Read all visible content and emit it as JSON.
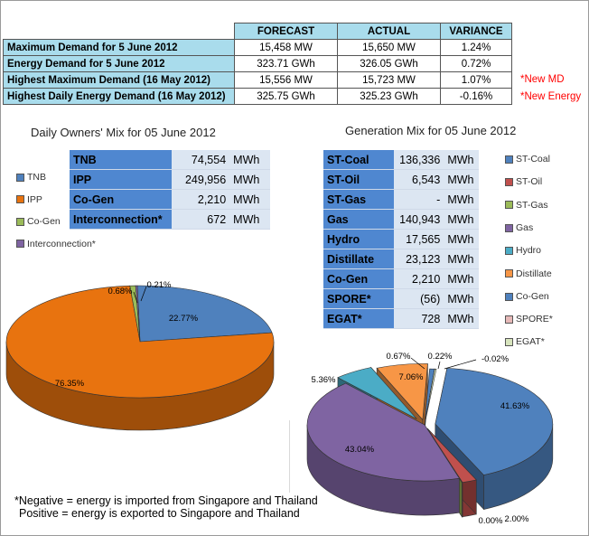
{
  "summary": {
    "headers": [
      "FORECAST",
      "ACTUAL",
      "VARIANCE"
    ],
    "rows": [
      {
        "label": "Maximum Demand for 5 June 2012",
        "forecast": "15,458  MW",
        "actual": "15,650  MW",
        "variance": "1.24%",
        "note": ""
      },
      {
        "label": "Energy Demand for 5 June 2012",
        "forecast": "323.71  GWh",
        "actual": "326.05  GWh",
        "variance": "0.72%",
        "note": ""
      },
      {
        "label": "Highest Maximum Demand (16 May 2012)",
        "forecast": "15,556  MW",
        "actual": "15,723  MW",
        "variance": "1.07%",
        "note": "*New MD"
      },
      {
        "label": "Highest Daily Energy Demand (16 May 2012)",
        "forecast": "325.75  GWh",
        "actual": "325.23  GWh",
        "variance": "-0.16%",
        "note": "*New Energy"
      }
    ]
  },
  "owners": {
    "title": "Daily Owners' Mix for 05 June 2012",
    "rows": [
      {
        "name": "TNB",
        "value": "74,554",
        "unit": "MWh"
      },
      {
        "name": "IPP",
        "value": "249,956",
        "unit": "MWh"
      },
      {
        "name": "Co-Gen",
        "value": "2,210",
        "unit": "MWh"
      },
      {
        "name": "Interconnection*",
        "value": "672",
        "unit": "MWh"
      }
    ],
    "legend": [
      {
        "label": "TNB",
        "color": "#4f81bd"
      },
      {
        "label": "IPP",
        "color": "#e8730f"
      },
      {
        "label": "Co-Gen",
        "color": "#9bbb59"
      },
      {
        "label": "Interconnection*",
        "color": "#7f64a2"
      }
    ]
  },
  "generation": {
    "title": "Generation Mix for 05 June 2012",
    "rows": [
      {
        "name": "ST-Coal",
        "value": "136,336",
        "unit": "MWh"
      },
      {
        "name": "ST-Oil",
        "value": "6,543",
        "unit": "MWh"
      },
      {
        "name": "ST-Gas",
        "value": "-",
        "unit": "MWh"
      },
      {
        "name": "Gas",
        "value": "140,943",
        "unit": "MWh"
      },
      {
        "name": "Hydro",
        "value": "17,565",
        "unit": "MWh"
      },
      {
        "name": "Distillate",
        "value": "23,123",
        "unit": "MWh"
      },
      {
        "name": "Co-Gen",
        "value": "2,210",
        "unit": "MWh"
      },
      {
        "name": "SPORE*",
        "value": "(56)",
        "unit": "MWh"
      },
      {
        "name": "EGAT*",
        "value": "728",
        "unit": "MWh"
      }
    ],
    "legend": [
      {
        "label": "ST-Coal",
        "color": "#4f81bd"
      },
      {
        "label": "ST-Oil",
        "color": "#c0504d"
      },
      {
        "label": "ST-Gas",
        "color": "#9bbb59"
      },
      {
        "label": "Gas",
        "color": "#7f64a2"
      },
      {
        "label": "Hydro",
        "color": "#4bacc6"
      },
      {
        "label": "Distillate",
        "color": "#f79646"
      },
      {
        "label": "Co-Gen",
        "color": "#4f81bd"
      },
      {
        "label": "SPORE*",
        "color": "#e6b9b8"
      },
      {
        "label": "EGAT*",
        "color": "#d7e4bd"
      }
    ]
  },
  "chart_data": [
    {
      "type": "pie",
      "title": "Daily Owners' Mix for 05 June 2012",
      "categories": [
        "TNB",
        "IPP",
        "Co-Gen",
        "Interconnection*"
      ],
      "values": [
        22.77,
        76.35,
        0.68,
        0.21
      ],
      "value_labels": [
        "22.77%",
        "76.35%",
        "0.68%",
        "0.21%"
      ],
      "colors": [
        "#4f81bd",
        "#e8730f",
        "#9bbb59",
        "#7f64a2"
      ],
      "legend": "left"
    },
    {
      "type": "pie",
      "title": "Generation Mix for 05 June 2012",
      "categories": [
        "ST-Coal",
        "ST-Oil",
        "ST-Gas",
        "Gas",
        "Hydro",
        "Distillate",
        "Co-Gen",
        "SPORE*",
        "EGAT*"
      ],
      "values": [
        41.63,
        2.0,
        0.0,
        43.04,
        5.36,
        7.06,
        0.67,
        -0.02,
        0.22
      ],
      "value_labels": [
        "41.63%",
        "2.00%",
        "0.00%",
        "43.04%",
        "5.36%",
        "7.06%",
        "0.67%",
        "-0.02%",
        "0.22%"
      ],
      "colors": [
        "#4f81bd",
        "#c0504d",
        "#9bbb59",
        "#7f64a2",
        "#4bacc6",
        "#f79646",
        "#4f81bd",
        "#e6b9b8",
        "#d7e4bd"
      ],
      "legend": "right"
    }
  ],
  "footnote": {
    "line1": "*Negative = energy is imported from Singapore and Thailand",
    "line2": "Positive = energy is exported to Singapore and Thailand"
  }
}
